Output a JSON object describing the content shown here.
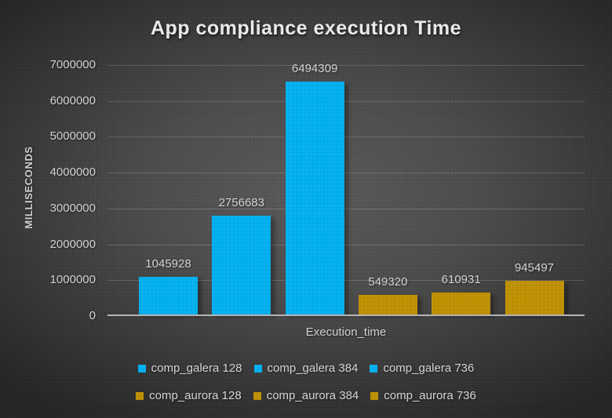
{
  "colors": {
    "galera_bar": "#00b0f0",
    "aurora_bar": "#bf9000",
    "axis_line": "#b2b2b2",
    "gridline": "#6f6f6f",
    "label_text": "#d6d6d6",
    "title_text": "#ececec",
    "background_center": "#585858",
    "background_edge": "#222222"
  },
  "chart_data": {
    "type": "bar",
    "title": "App compliance execution Time",
    "xlabel": "Execution_time",
    "ylabel": "MILLISECONDS",
    "ylim": [
      0,
      7000000
    ],
    "ytick_interval": 1000000,
    "ytick_labels": [
      "0",
      "1000000",
      "2000000",
      "3000000",
      "4000000",
      "5000000",
      "6000000",
      "7000000"
    ],
    "grid": true,
    "legend_position": "bottom",
    "series": [
      {
        "name": "comp_galera 128",
        "value": 1045928,
        "label": "1045928",
        "color": "#00b0f0"
      },
      {
        "name": "comp_galera 384",
        "value": 2756683,
        "label": "2756683",
        "color": "#00b0f0"
      },
      {
        "name": "comp_galera 736",
        "value": 6494309,
        "label": "6494309",
        "color": "#00b0f0"
      },
      {
        "name": "comp_aurora 128",
        "value": 549320,
        "label": "549320",
        "color": "#bf9000"
      },
      {
        "name": "comp_aurora 384",
        "value": 610931,
        "label": "610931",
        "color": "#bf9000"
      },
      {
        "name": "comp_aurora 736",
        "value": 945497,
        "label": "945497",
        "color": "#bf9000"
      }
    ],
    "legend_rows": [
      [
        0,
        1,
        2
      ],
      [
        3,
        4,
        5
      ]
    ]
  }
}
